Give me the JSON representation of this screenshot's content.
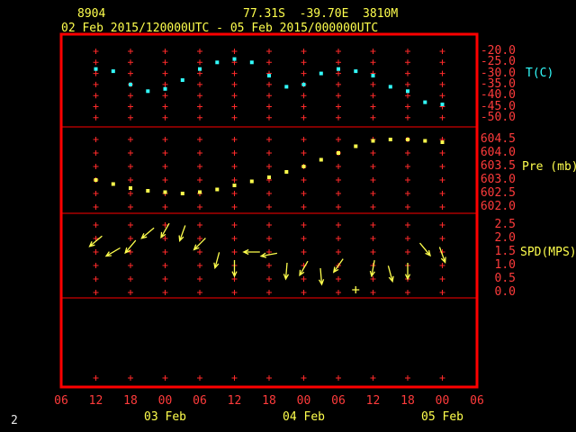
{
  "header": {
    "station_id": "8904",
    "location": "77.31S  -39.70E  3810M",
    "time_range": "02 Feb 2015/120000UTC - 05 Feb 2015/000000UTC"
  },
  "footer": {
    "page_label": "2"
  },
  "colors": {
    "background": "#000000",
    "frame": "#ff0000",
    "grid": "#ff2a2a",
    "axis_text": "#ff3b3b",
    "header_text": "#ffff4d",
    "date_text": "#ffff4d",
    "temperature": "#33ffff",
    "pressure": "#ffff4d",
    "wind": "#ffff4d",
    "page_text": "#e8e8e8"
  },
  "chart_data": {
    "type": "scatter",
    "title": "",
    "x_axis": {
      "tick_labels": [
        "06",
        "12",
        "18",
        "00",
        "06",
        "12",
        "18",
        "00",
        "06",
        "12",
        "18",
        "00",
        "06"
      ],
      "tick_interval_hours": 6,
      "start_hour": 6,
      "end_hour": 78,
      "date_labels": [
        {
          "label": "03 Feb",
          "tick_index": 3
        },
        {
          "label": "04 Feb",
          "tick_index": 7
        },
        {
          "label": "05 Feb",
          "tick_index": 11
        }
      ]
    },
    "panels": [
      {
        "name": "temperature",
        "ylabel": "T(C)",
        "ylim": [
          -50,
          -20
        ],
        "y_tick_labels": [
          "-20.0",
          "-25.0",
          "-30.0",
          "-35.0",
          "-40.0",
          "-45.0",
          "-50.0"
        ],
        "series": {
          "name": "temperature",
          "x_hours": [
            12,
            15,
            18,
            21,
            24,
            27,
            30,
            33,
            36,
            39,
            42,
            45,
            48,
            51,
            54,
            57,
            60,
            63,
            66,
            69,
            72
          ],
          "values": [
            -28,
            -29,
            -35,
            -38,
            -37,
            -33,
            -28,
            -25,
            -23.5,
            -25,
            -31,
            -36,
            -35,
            -30,
            -28,
            -29,
            -31,
            -36,
            -38,
            -43,
            -44
          ]
        }
      },
      {
        "name": "pressure",
        "ylabel": "Pre (mb)",
        "ylim": [
          602.0,
          604.5
        ],
        "y_tick_labels": [
          "604.5",
          "604.0",
          "603.5",
          "603.0",
          "602.5",
          "602.0"
        ],
        "series": {
          "name": "pressure",
          "x_hours": [
            12,
            15,
            18,
            21,
            24,
            27,
            30,
            33,
            36,
            39,
            42,
            45,
            48,
            51,
            54,
            57,
            60,
            63,
            66,
            69,
            72
          ],
          "values": [
            603.0,
            602.85,
            602.7,
            602.6,
            602.55,
            602.5,
            602.55,
            602.65,
            602.8,
            602.95,
            603.1,
            603.3,
            603.5,
            603.75,
            604.0,
            604.25,
            604.45,
            604.5,
            604.5,
            604.45,
            604.4
          ]
        }
      },
      {
        "name": "wind_speed",
        "ylabel": "SPD(MPS)",
        "ylim": [
          0.0,
          2.5
        ],
        "y_tick_labels": [
          "2.5",
          "2.0",
          "1.5",
          "1.0",
          "0.5",
          "0.0"
        ],
        "series": {
          "name": "wind",
          "x_hours": [
            12,
            15,
            18,
            21,
            24,
            27,
            30,
            33,
            36,
            39,
            42,
            45,
            48,
            51,
            54,
            57,
            60,
            63,
            66,
            69,
            72
          ],
          "speeds": [
            1.9,
            1.5,
            1.7,
            2.2,
            2.3,
            2.2,
            1.8,
            1.2,
            0.9,
            1.5,
            1.4,
            0.8,
            0.9,
            0.6,
            1.0,
            0.1,
            0.9,
            0.7,
            0.8,
            1.6,
            1.4
          ],
          "directions_deg": [
            230,
            240,
            220,
            230,
            210,
            200,
            225,
            195,
            180,
            270,
            260,
            185,
            210,
            175,
            215,
            null,
            190,
            165,
            180,
            140,
            160
          ]
        }
      }
    ]
  }
}
